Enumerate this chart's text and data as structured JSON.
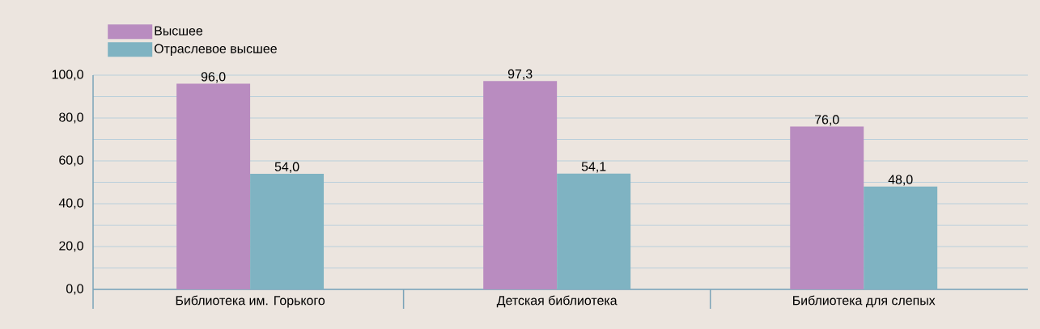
{
  "chart_data": {
    "type": "bar",
    "categories": [
      "Библиотека им. Горького",
      "Детская библиотека",
      "Библиотека для слепых"
    ],
    "series": [
      {
        "name": "Высшее",
        "color": "#b98cc0",
        "values": [
          96.0,
          97.3,
          76.0
        ],
        "value_labels": [
          "96,0",
          "97,3",
          "76,0"
        ]
      },
      {
        "name": "Отраслевое высшее",
        "color": "#7fb3c2",
        "values": [
          54.0,
          54.1,
          48.0
        ],
        "value_labels": [
          "54,0",
          "54,1",
          "48,0"
        ]
      }
    ],
    "ylim": [
      0,
      100
    ],
    "yticks": [
      {
        "value": 0,
        "label": "0,0"
      },
      {
        "value": 20,
        "label": "20,0"
      },
      {
        "value": 40,
        "label": "40,0"
      },
      {
        "value": 60,
        "label": "60,0"
      },
      {
        "value": 80,
        "label": "80,0"
      },
      {
        "value": 100,
        "label": "100,0"
      }
    ],
    "grid": "y",
    "legend": "top left"
  }
}
